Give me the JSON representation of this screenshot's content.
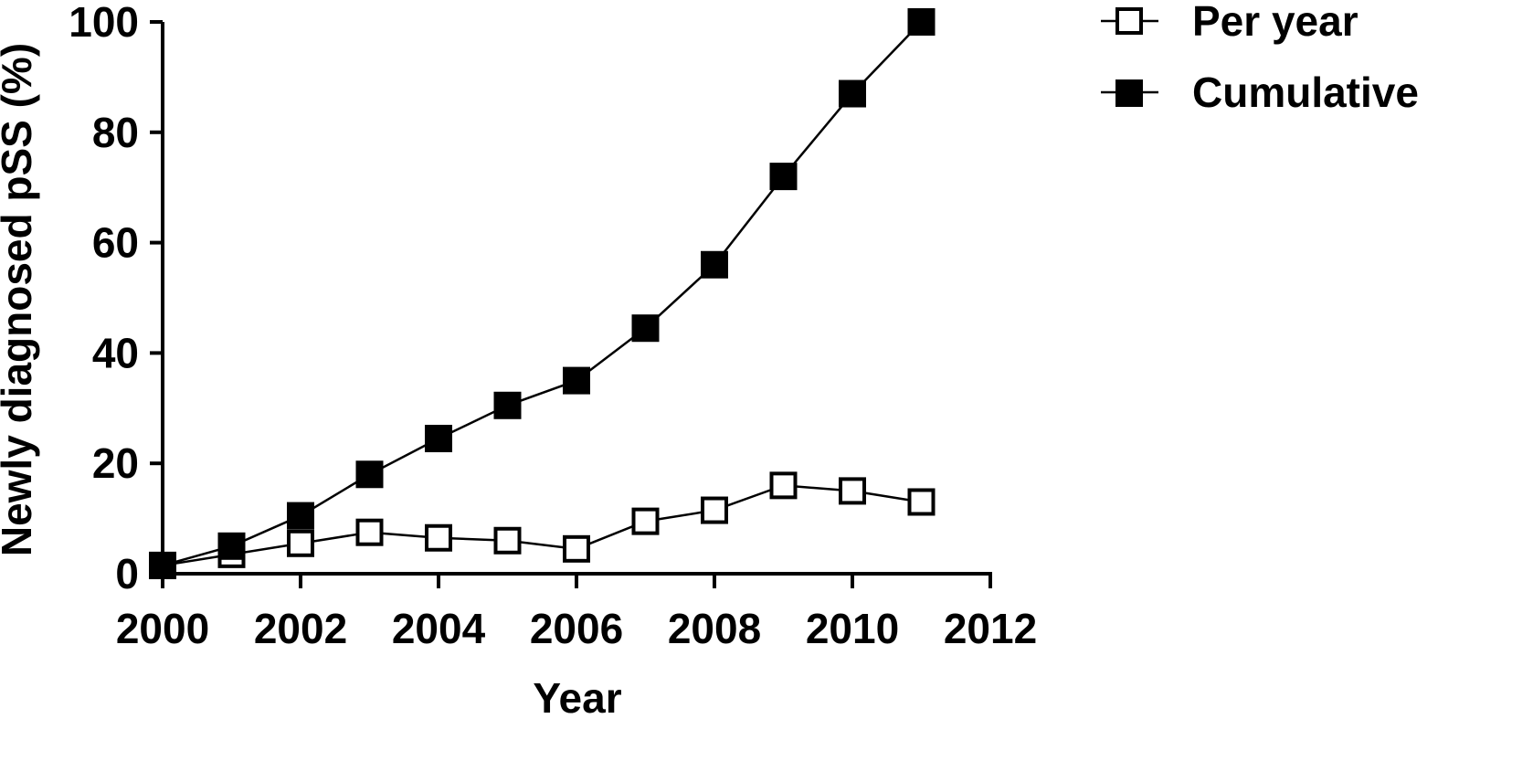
{
  "chart_data": {
    "type": "line",
    "x": [
      2000,
      2001,
      2002,
      2003,
      2004,
      2005,
      2006,
      2007,
      2008,
      2009,
      2010,
      2011
    ],
    "series": [
      {
        "name": "Per year",
        "marker": "open-square",
        "color": "#000000",
        "values": [
          1.5,
          3.5,
          5.5,
          7.5,
          6.5,
          6,
          4.5,
          9.5,
          11.5,
          16,
          15,
          13
        ]
      },
      {
        "name": "Cumulative",
        "marker": "filled-square",
        "color": "#000000",
        "values": [
          1.5,
          5,
          10.5,
          18,
          24.5,
          30.5,
          35,
          44.5,
          56,
          72,
          87,
          100
        ]
      }
    ],
    "xlabel": "Year",
    "ylabel": "Newly diagnosed pSS (%)",
    "xlim": [
      2000,
      2012
    ],
    "ylim": [
      0,
      100
    ],
    "xticks": [
      "2000",
      "2002",
      "2004",
      "2006",
      "2008",
      "2010",
      "2012"
    ],
    "yticks": [
      "0",
      "20",
      "40",
      "60",
      "80",
      "100"
    ],
    "grid": false,
    "legend_position": "top-right"
  }
}
